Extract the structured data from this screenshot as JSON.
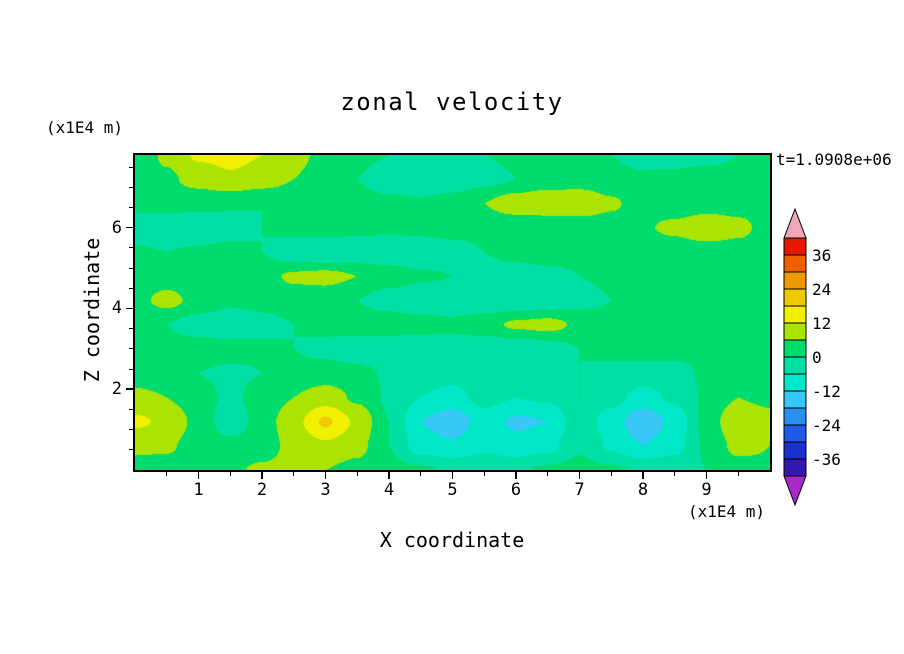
{
  "chart_data": {
    "type": "heatmap",
    "title": "zonal velocity",
    "time_annotation": "t=1.0908e+06",
    "xlabel": "X coordinate",
    "ylabel": "Z coordinate",
    "x_unit_label": "(x1E4 m)",
    "y_unit_label": "(x1E4 m)",
    "x_range": [
      0,
      10
    ],
    "z_range": [
      0,
      7.8
    ],
    "x_ticks": [
      "1",
      "2",
      "3",
      "4",
      "5",
      "6",
      "7",
      "8",
      "9"
    ],
    "x_tick_values": [
      1,
      2,
      3,
      4,
      5,
      6,
      7,
      8,
      9
    ],
    "z_ticks": [
      "2",
      "4",
      "6"
    ],
    "z_tick_values": [
      2,
      4,
      6
    ],
    "x_minor_step": 0.5,
    "z_minor_step": 0.5,
    "contour_levels": [
      -42,
      -36,
      -30,
      -24,
      -18,
      -12,
      -6,
      0,
      6,
      12,
      18,
      24,
      30,
      36,
      42
    ],
    "band_colors": [
      "#A828C8",
      "#3018B0",
      "#1830D0",
      "#2058E8",
      "#2890F0",
      "#38C8F8",
      "#00E8C8",
      "#00E0A4",
      "#00DC6C",
      "#AAE400",
      "#F0F000",
      "#F0C800",
      "#F09800",
      "#F06000",
      "#E81800",
      "#F0A8B8"
    ],
    "colorbar_tick_labels": [
      "36",
      "24",
      "12",
      "0",
      "-12",
      "-24",
      "-36"
    ],
    "grid_rows_bottom_to_top": true,
    "grid": [
      [
        2,
        3,
        4,
        5,
        7,
        8,
        6,
        4,
        2,
        1,
        -1,
        -2,
        -1,
        1,
        2,
        1,
        -1,
        -2,
        0,
        3,
        5
      ],
      [
        8,
        7,
        3,
        2,
        3,
        8,
        11,
        8,
        0,
        -9,
        -11,
        -7,
        -10,
        -8,
        -1,
        -7,
        -12,
        -8,
        1,
        8,
        6
      ],
      [
        13,
        11,
        4,
        -4,
        3,
        10,
        19,
        11,
        0,
        -12,
        -16,
        -9,
        -13,
        -12,
        -2,
        -9,
        -17,
        -10,
        2,
        12,
        9
      ],
      [
        8,
        6,
        2,
        -1,
        2,
        6,
        9,
        5,
        -1,
        -6,
        -8,
        -4,
        -6,
        -5,
        0,
        -4,
        -8,
        -5,
        1,
        6,
        4
      ],
      [
        2,
        1,
        0,
        -1,
        0,
        2,
        3,
        2,
        -1,
        -3,
        -4,
        -2,
        -3,
        -2,
        0,
        -2,
        -3,
        -2,
        1,
        3,
        2
      ],
      [
        1,
        2,
        3,
        2,
        1,
        0,
        -2,
        -4,
        -5,
        -5,
        -4,
        -5,
        -5,
        -3,
        0,
        2,
        3,
        2,
        1,
        1,
        1
      ],
      [
        2,
        0,
        -3,
        -4,
        -2,
        0,
        2,
        3,
        4,
        3,
        2,
        4,
        7,
        8,
        5,
        3,
        2,
        1,
        0,
        2,
        3
      ],
      [
        4,
        8,
        4,
        1,
        2,
        3,
        2,
        0,
        -3,
        -5,
        -6,
        -5,
        -5,
        -4,
        -2,
        0,
        2,
        3,
        2,
        1,
        2
      ],
      [
        2,
        3,
        2,
        1,
        4,
        7,
        8,
        6,
        3,
        1,
        0,
        -2,
        -3,
        -2,
        0,
        1,
        2,
        3,
        2,
        2,
        2
      ],
      [
        1,
        0,
        1,
        2,
        0,
        -4,
        -6,
        -5,
        -4,
        -5,
        -3,
        0,
        2,
        3,
        2,
        1,
        0,
        1,
        2,
        3,
        2
      ],
      [
        -4,
        -6,
        -5,
        -3,
        0,
        2,
        3,
        2,
        1,
        2,
        3,
        2,
        1,
        0,
        2,
        3,
        5,
        8,
        12,
        8,
        3
      ],
      [
        2,
        3,
        2,
        1,
        0,
        1,
        2,
        3,
        2,
        1,
        3,
        6,
        10,
        12,
        11,
        7,
        3,
        1,
        2,
        3,
        2
      ],
      [
        3,
        5,
        8,
        11,
        9,
        6,
        3,
        0,
        -4,
        -5,
        -4,
        -2,
        0,
        2,
        3,
        2,
        1,
        2,
        3,
        2,
        1
      ],
      [
        2,
        7,
        13,
        14,
        12,
        8,
        4,
        2,
        0,
        -2,
        -1,
        0,
        1,
        2,
        1,
        0,
        -2,
        -3,
        -2,
        0,
        2
      ]
    ]
  }
}
